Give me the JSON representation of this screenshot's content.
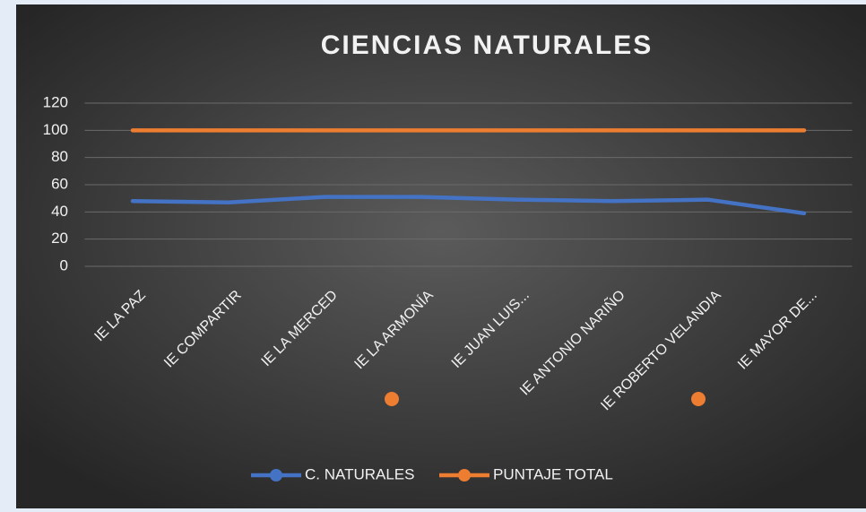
{
  "chart_data": {
    "type": "line",
    "title": "CIENCIAS NATURALES",
    "categories": [
      "IE LA PAZ",
      "IE COMPARTIR",
      "IE LA MERCED",
      "IE LA ARMONÍA",
      "IE JUAN LUIS...",
      "IE ANTONIO NARIÑO",
      "IE ROBERTO VELANDIA",
      "IE MAYOR DE..."
    ],
    "series": [
      {
        "name": "C. NATURALES",
        "color": "#4472c4",
        "values": [
          48,
          47,
          51,
          51,
          49,
          48,
          49,
          39
        ]
      },
      {
        "name": "PUNTAJE TOTAL",
        "color": "#ed7d31",
        "values": [
          100,
          100,
          100,
          100,
          100,
          100,
          100,
          100
        ]
      }
    ],
    "ylim": [
      0,
      120
    ],
    "yticks": [
      0,
      20,
      40,
      60,
      80,
      100,
      120
    ],
    "grid": true,
    "legend": "bottom"
  }
}
